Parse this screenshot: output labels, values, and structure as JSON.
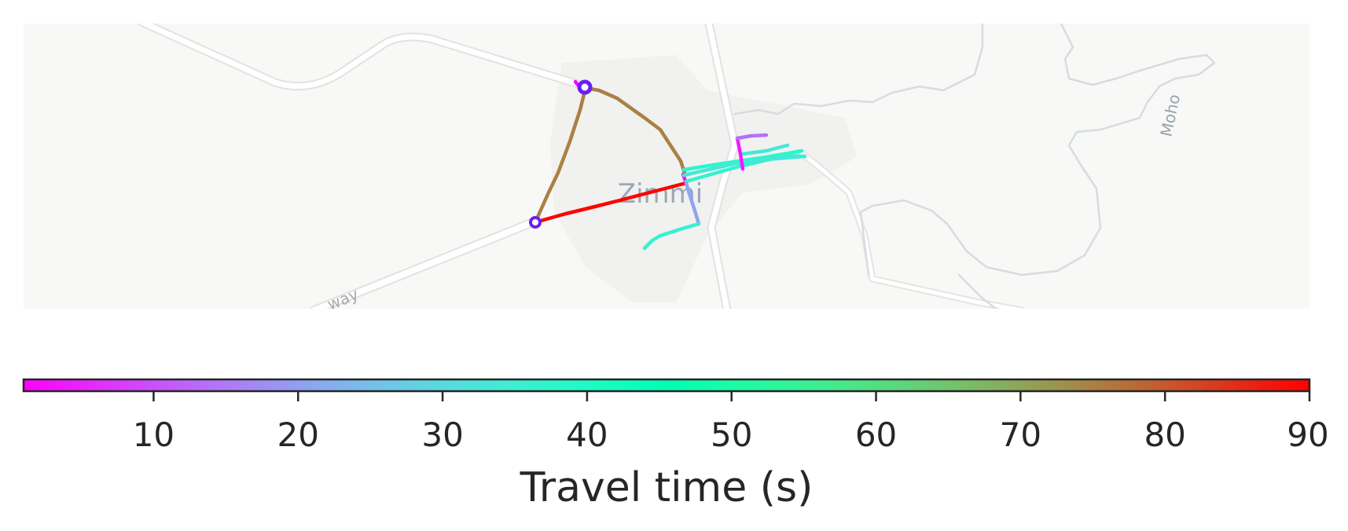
{
  "map": {
    "place_labels": [
      {
        "id": "town",
        "text": "Zimmi"
      },
      {
        "id": "river",
        "text": "Moho"
      },
      {
        "id": "road",
        "text": "way"
      }
    ],
    "route_segments": [
      {
        "id": "south-arterial",
        "travel_time_s": 90
      },
      {
        "id": "west-arterial",
        "travel_time_s": 75
      },
      {
        "id": "north-arterial",
        "travel_time_s": 75
      },
      {
        "id": "roundabout-exit",
        "travel_time_s": 2
      },
      {
        "id": "junction-link",
        "travel_time_s": 3
      },
      {
        "id": "east-branch-upper",
        "travel_time_s": 38
      },
      {
        "id": "east-branch-lower",
        "travel_time_s": 36
      },
      {
        "id": "east-branch-3",
        "travel_time_s": 34
      },
      {
        "id": "east-branch-4",
        "travel_time_s": 33
      },
      {
        "id": "east-spur",
        "travel_time_s": 4
      },
      {
        "id": "east-top",
        "travel_time_s": 14
      },
      {
        "id": "south-spur",
        "travel_time_s": 21
      },
      {
        "id": "south-spur-end",
        "travel_time_s": 36
      }
    ],
    "markers": [
      {
        "id": "west-node"
      },
      {
        "id": "north-node"
      }
    ]
  },
  "colorbar": {
    "title": "Travel time (s)",
    "min": 1,
    "max": 90,
    "ticks": [
      "10",
      "20",
      "30",
      "40",
      "50",
      "60",
      "70",
      "80",
      "90"
    ],
    "colormap": "rainbow"
  }
}
